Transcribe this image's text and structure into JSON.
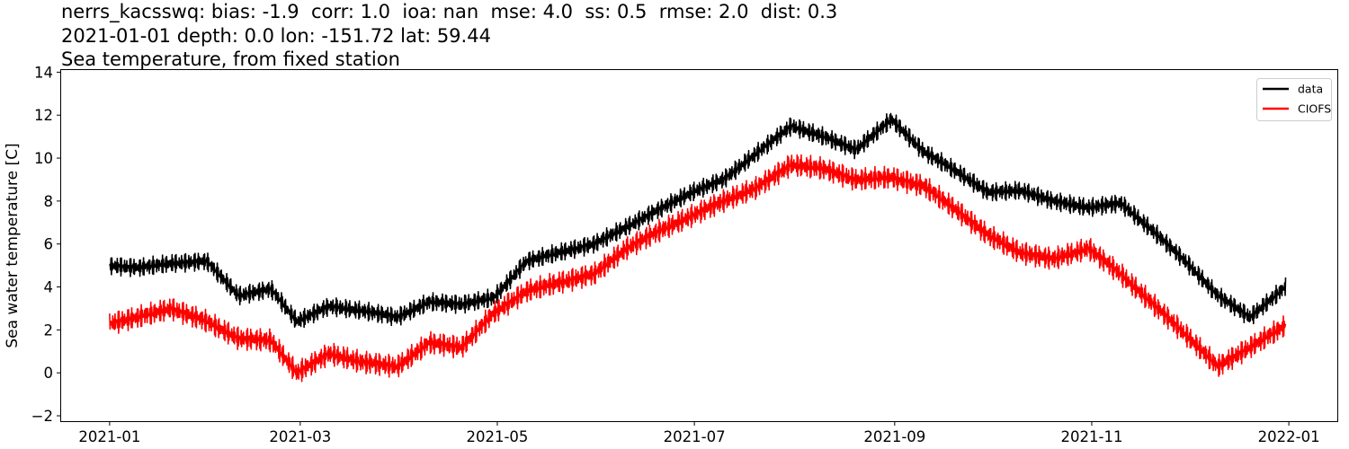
{
  "title_lines": [
    "nerrs_kacsswq: bias: -1.9  corr: 1.0  ioa: nan  mse: 4.0  ss: 0.5  rmse: 2.0  dist: 0.3",
    "2021-01-01 depth: 0.0 lon: -151.72 lat: 59.44",
    "Sea temperature, from fixed station"
  ],
  "chart_data": {
    "type": "line",
    "xlabel": "",
    "ylabel": "Sea water temperature [C]",
    "xlim": [
      "2020-12-17",
      "2022-01-16"
    ],
    "ylim": [
      -2.25,
      14.1
    ],
    "grid": false,
    "legend_position": "top-right",
    "x_ticks": [
      "2021-01",
      "2021-03",
      "2021-05",
      "2021-07",
      "2021-09",
      "2021-11",
      "2022-01"
    ],
    "y_ticks": [
      -2,
      0,
      2,
      4,
      6,
      8,
      10,
      12,
      14
    ],
    "x": [
      "2021-01-01",
      "2021-01-10",
      "2021-01-20",
      "2021-01-31",
      "2021-02-10",
      "2021-02-20",
      "2021-02-28",
      "2021-03-10",
      "2021-03-20",
      "2021-03-31",
      "2021-04-10",
      "2021-04-20",
      "2021-04-30",
      "2021-05-10",
      "2021-05-20",
      "2021-05-31",
      "2021-06-10",
      "2021-06-20",
      "2021-06-30",
      "2021-07-10",
      "2021-07-20",
      "2021-07-31",
      "2021-08-10",
      "2021-08-20",
      "2021-08-31",
      "2021-09-10",
      "2021-09-20",
      "2021-09-30",
      "2021-10-10",
      "2021-10-20",
      "2021-10-31",
      "2021-11-10",
      "2021-11-20",
      "2021-11-30",
      "2021-12-10",
      "2021-12-20",
      "2021-12-31"
    ],
    "series": [
      {
        "name": "data",
        "color": "#000000",
        "values": [
          5.0,
          4.9,
          5.1,
          5.2,
          3.6,
          3.9,
          2.4,
          3.1,
          2.9,
          2.6,
          3.3,
          3.2,
          3.5,
          5.2,
          5.6,
          6.0,
          6.8,
          7.6,
          8.4,
          9.0,
          10.2,
          11.5,
          11.0,
          10.4,
          11.8,
          10.3,
          9.4,
          8.4,
          8.5,
          8.0,
          7.7,
          7.9,
          6.6,
          5.2,
          3.6,
          2.6,
          4.0
        ]
      },
      {
        "name": "CIOFS",
        "color": "#ff0000",
        "values": [
          2.3,
          2.6,
          3.0,
          2.4,
          1.6,
          1.5,
          0.0,
          0.9,
          0.5,
          0.3,
          1.4,
          1.2,
          2.8,
          3.8,
          4.2,
          4.6,
          5.8,
          6.6,
          7.3,
          8.0,
          8.6,
          9.7,
          9.5,
          9.0,
          9.1,
          8.7,
          7.6,
          6.4,
          5.6,
          5.3,
          5.8,
          4.6,
          3.2,
          1.8,
          0.3,
          1.2,
          2.2
        ]
      }
    ]
  }
}
